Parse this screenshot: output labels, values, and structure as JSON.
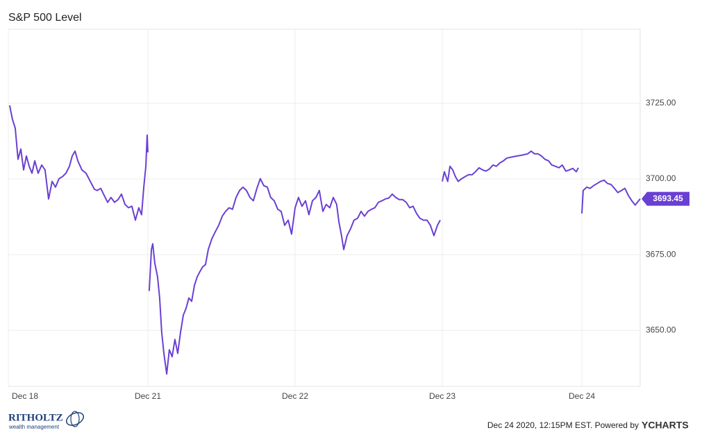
{
  "chart_data": {
    "type": "line",
    "title": "S&P 500 Level",
    "footer": "Dec 24 2020, 12:15PM EST. Powered by",
    "brand": "YCHARTS",
    "logo_name": "RITHOLTZ",
    "logo_sub": "wealth management",
    "grid": true,
    "xlim": [
      0,
      4.301
    ],
    "ylim": [
      3631.5,
      3749.5
    ],
    "xticks": [
      {
        "value": 0,
        "label": "Dec 18"
      },
      {
        "value": 0.95,
        "label": "Dec 21"
      },
      {
        "value": 1.952,
        "label": "Dec 22"
      },
      {
        "value": 2.954,
        "label": "Dec 23"
      },
      {
        "value": 3.904,
        "label": "Dec 24"
      }
    ],
    "yticks": [
      {
        "value": 3650,
        "label": "3650.00"
      },
      {
        "value": 3675,
        "label": "3675.00"
      },
      {
        "value": 3700,
        "label": "3700.00"
      },
      {
        "value": 3725,
        "label": "3725.00"
      }
    ],
    "series": [
      {
        "name": "S&P 500 Level",
        "color": "#6a3fd3",
        "x": [
          0.009,
          0.028,
          0.047,
          0.066,
          0.085,
          0.104,
          0.123,
          0.142,
          0.161,
          0.18,
          0.203,
          0.227,
          0.25,
          0.274,
          0.298,
          0.321,
          0.345,
          0.369,
          0.392,
          0.416,
          0.435,
          0.454,
          0.473,
          0.501,
          0.529,
          0.558,
          0.586,
          0.605,
          0.629,
          0.652,
          0.676,
          0.699,
          0.723,
          0.747,
          0.77,
          0.794,
          0.818,
          0.841,
          0.865,
          0.888,
          0.907,
          0.922,
          0.936,
          0.945,
          0.95,
          null,
          0.959,
          0.974,
          0.983,
          0.997,
          1.016,
          1.03,
          1.044,
          1.059,
          1.078,
          1.096,
          1.115,
          1.134,
          1.153,
          1.172,
          1.191,
          1.21,
          1.229,
          1.248,
          1.267,
          1.285,
          1.304,
          1.323,
          1.342,
          1.361,
          1.385,
          1.408,
          1.432,
          1.456,
          1.479,
          1.503,
          1.526,
          1.55,
          1.574,
          1.597,
          1.621,
          1.645,
          1.668,
          1.692,
          1.715,
          1.739,
          1.763,
          1.786,
          1.81,
          1.834,
          1.857,
          1.881,
          1.905,
          1.928,
          1.952,
          1.975,
          1.999,
          2.023,
          2.046,
          2.07,
          2.094,
          2.117,
          2.141,
          2.164,
          2.188,
          2.212,
          2.235,
          2.25,
          2.268,
          2.283,
          2.306,
          2.33,
          2.353,
          2.377,
          2.401,
          2.424,
          2.448,
          2.472,
          2.495,
          2.519,
          2.543,
          2.566,
          2.59,
          2.613,
          2.637,
          2.661,
          2.684,
          2.708,
          2.732,
          2.755,
          2.779,
          2.802,
          2.826,
          2.85,
          2.873,
          2.897,
          2.921,
          2.94,
          null,
          2.954,
          2.968,
          2.991,
          3.006,
          3.025,
          3.043,
          3.062,
          3.086,
          3.11,
          3.133,
          3.157,
          3.18,
          3.204,
          3.228,
          3.251,
          3.275,
          3.299,
          3.322,
          3.346,
          3.37,
          3.393,
          3.44,
          3.488,
          3.535,
          3.559,
          3.582,
          3.606,
          3.629,
          3.653,
          3.677,
          3.7,
          3.724,
          3.748,
          3.771,
          3.795,
          3.819,
          3.842,
          3.866,
          3.88,
          null,
          3.904,
          3.913,
          3.937,
          3.96,
          3.984,
          4.008,
          4.031,
          4.055,
          4.079,
          4.102,
          4.126,
          4.149,
          4.173,
          4.197,
          4.22,
          4.244,
          4.267,
          4.282,
          4.301
        ],
        "values": [
          3724.3,
          3719.7,
          3716.8,
          3706.5,
          3709.9,
          3703.0,
          3707.6,
          3704.2,
          3701.9,
          3706.0,
          3701.9,
          3704.6,
          3703.0,
          3693.4,
          3699.2,
          3697.3,
          3700.1,
          3700.8,
          3701.9,
          3704.2,
          3707.6,
          3709.2,
          3706.0,
          3703.0,
          3701.9,
          3699.2,
          3696.6,
          3696.2,
          3696.9,
          3694.6,
          3692.3,
          3693.9,
          3692.3,
          3693.2,
          3695.0,
          3691.6,
          3690.5,
          3691.0,
          3686.4,
          3690.5,
          3688.2,
          3697.3,
          3704.2,
          3714.5,
          3708.8,
          null,
          3663.0,
          3676.7,
          3678.6,
          3672.2,
          3667.6,
          3660.7,
          3649.3,
          3642.4,
          3635.6,
          3643.6,
          3641.3,
          3647.0,
          3642.4,
          3649.3,
          3655.0,
          3657.3,
          3660.7,
          3659.6,
          3664.9,
          3667.6,
          3669.4,
          3671.0,
          3671.7,
          3676.7,
          3680.2,
          3682.5,
          3684.7,
          3687.7,
          3689.3,
          3690.5,
          3690.0,
          3693.9,
          3696.2,
          3697.3,
          3696.2,
          3693.9,
          3692.8,
          3696.9,
          3700.1,
          3697.8,
          3697.3,
          3693.9,
          3692.8,
          3690.0,
          3689.3,
          3684.7,
          3686.4,
          3681.8,
          3690.5,
          3693.9,
          3691.0,
          3692.8,
          3688.2,
          3692.8,
          3693.9,
          3696.2,
          3689.3,
          3691.6,
          3690.5,
          3693.9,
          3691.6,
          3685.9,
          3681.3,
          3676.7,
          3681.3,
          3683.6,
          3686.4,
          3687.0,
          3689.3,
          3687.7,
          3689.3,
          3690.0,
          3690.5,
          3692.3,
          3692.8,
          3693.4,
          3693.7,
          3695.0,
          3693.9,
          3693.2,
          3693.2,
          3692.3,
          3690.5,
          3691.0,
          3688.6,
          3687.0,
          3686.4,
          3686.4,
          3684.7,
          3681.3,
          3684.7,
          3686.4,
          null,
          3699.2,
          3702.4,
          3699.2,
          3704.2,
          3703.0,
          3700.8,
          3699.2,
          3700.1,
          3700.8,
          3701.4,
          3701.4,
          3702.4,
          3703.7,
          3703.0,
          3702.6,
          3703.3,
          3704.6,
          3704.2,
          3705.3,
          3706.0,
          3706.9,
          3707.4,
          3707.8,
          3708.3,
          3709.2,
          3708.3,
          3708.3,
          3707.6,
          3706.5,
          3706.0,
          3704.6,
          3704.2,
          3703.7,
          3704.6,
          3702.6,
          3703.0,
          3703.5,
          3702.4,
          3703.7,
          null,
          3688.6,
          3696.2,
          3697.3,
          3696.9,
          3697.8,
          3698.5,
          3699.2,
          3699.6,
          3698.5,
          3698.2,
          3696.9,
          3695.5,
          3696.2,
          3696.9,
          3694.6,
          3692.8,
          3691.4,
          3692.3,
          3693.45
        ]
      }
    ]
  }
}
